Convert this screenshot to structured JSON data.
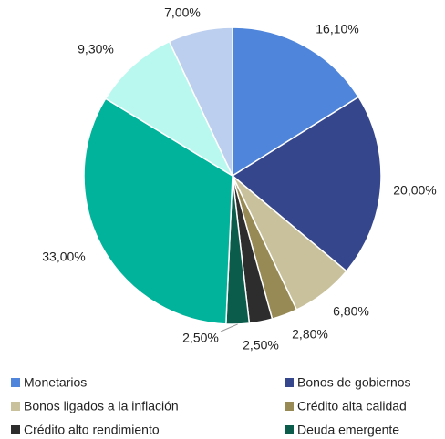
{
  "chart_data": {
    "type": "pie",
    "categories": [
      "Monetarios",
      "Bonos de gobiernos",
      "Bonos ligados a la inflación",
      "Crédito alta calidad",
      "Crédito alto rendimiento",
      "Deuda emergente",
      null,
      null,
      null
    ],
    "values": [
      16.1,
      20.0,
      6.8,
      2.8,
      2.5,
      2.5,
      33.0,
      9.3,
      7.0
    ],
    "value_labels": [
      "16,10%",
      "20,00%",
      "6,80%",
      "2,80%",
      "2,50%",
      "2,50%",
      "33,00%",
      "9,30%",
      "7,00%"
    ],
    "colors": [
      "#4f86db",
      "#35468c",
      "#c8c19c",
      "#978a55",
      "#2d2d2d",
      "#0c5c4c",
      "#00b39a",
      "#b8f8ef",
      "#bccfee"
    ],
    "legend": "bottom"
  }
}
